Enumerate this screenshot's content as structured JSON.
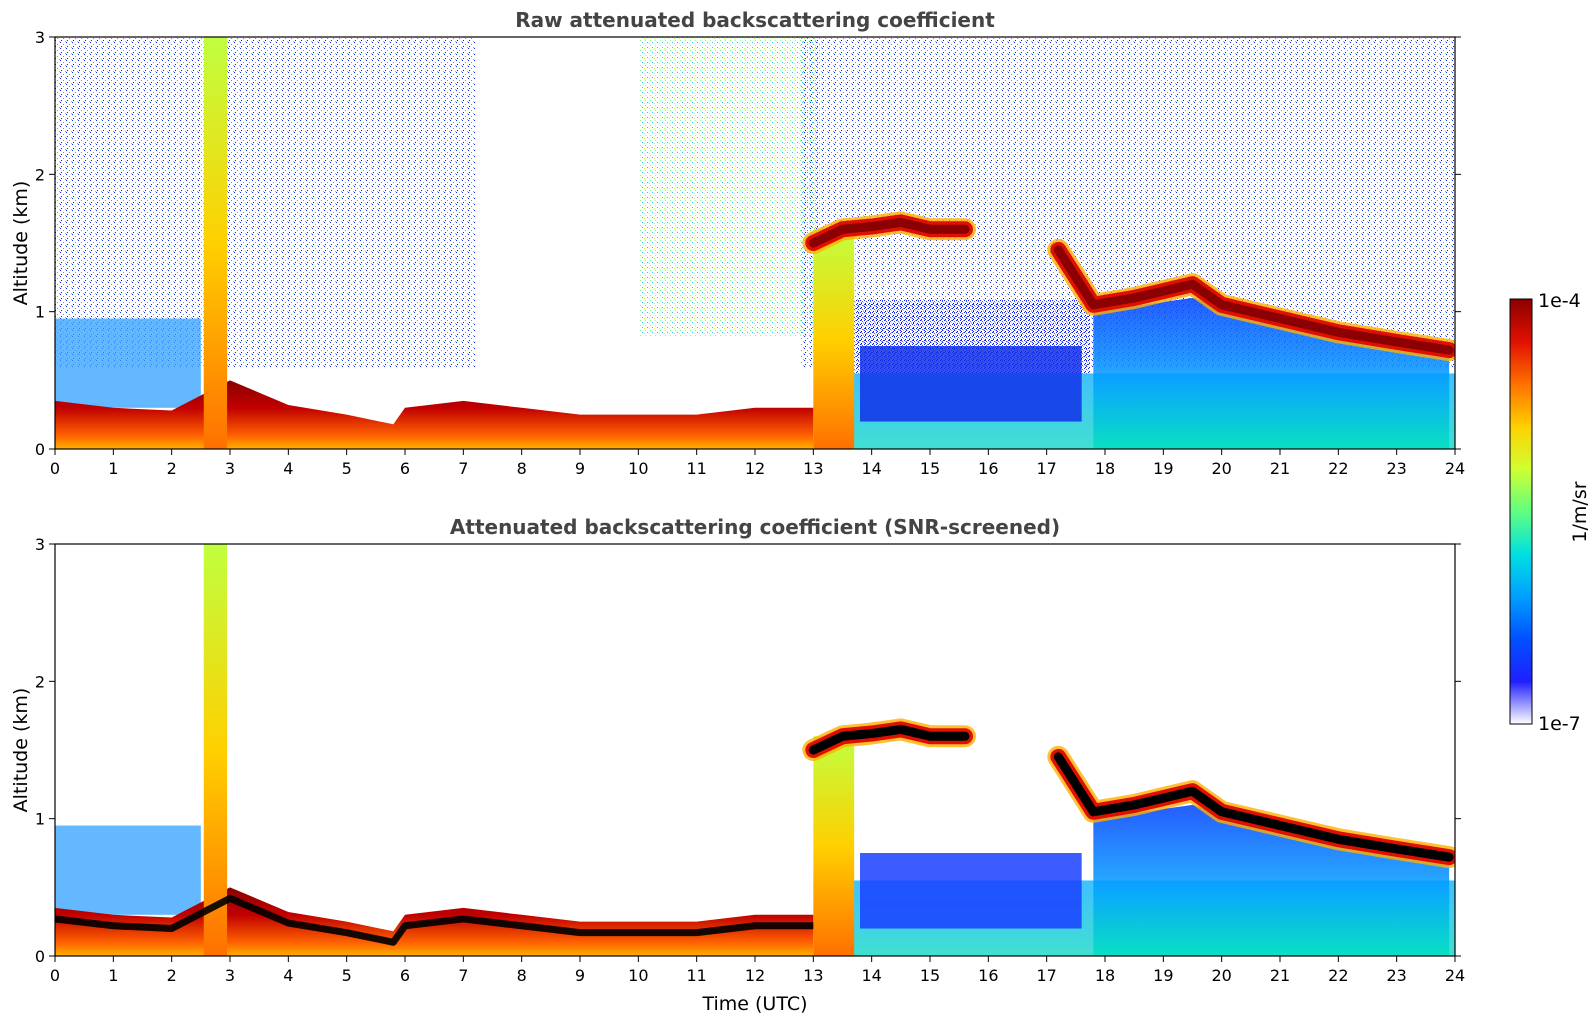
{
  "figure": {
    "xlabel": "Time (UTC)",
    "colorbar": {
      "label": "1/m/sr",
      "max_label": "1e-4",
      "min_label": "1e-7",
      "scale": "log",
      "range": [
        1e-07,
        0.0001
      ]
    }
  },
  "colors": {
    "title_text": "#444444",
    "colormap": [
      "#ffffff",
      "#2020ff",
      "#0050ff",
      "#00a0ff",
      "#00e0e0",
      "#60ff80",
      "#d0ff30",
      "#ffd000",
      "#ff7000",
      "#e01000",
      "#8b0000"
    ],
    "black_layer": "#000000"
  },
  "chart_data": [
    {
      "type": "heatmap",
      "title": "Raw attenuated backscattering coefficient",
      "ylabel": "Altitude (km)",
      "xlim": [
        0,
        24
      ],
      "ylim": [
        0,
        3
      ],
      "xticks": [
        "0",
        "1",
        "2",
        "3",
        "4",
        "5",
        "6",
        "7",
        "8",
        "9",
        "10",
        "11",
        "12",
        "13",
        "14",
        "15",
        "16",
        "17",
        "18",
        "19",
        "20",
        "21",
        "22",
        "23",
        "24"
      ],
      "yticks": [
        "0",
        "1",
        "2",
        "3"
      ],
      "features": {
        "boundary_layer_top_km": [
          [
            0,
            0.35
          ],
          [
            1,
            0.3
          ],
          [
            2,
            0.28
          ],
          [
            3,
            0.5
          ],
          [
            4,
            0.32
          ],
          [
            5,
            0.25
          ],
          [
            5.8,
            0.18
          ],
          [
            6,
            0.3
          ],
          [
            7,
            0.35
          ],
          [
            8,
            0.3
          ],
          [
            9,
            0.25
          ],
          [
            10,
            0.25
          ],
          [
            11,
            0.25
          ],
          [
            12,
            0.3
          ],
          [
            13,
            0.3
          ]
        ],
        "cloud_layer_km": [
          [
            13,
            1.5
          ],
          [
            13.5,
            1.6
          ],
          [
            14,
            1.62
          ],
          [
            14.5,
            1.65
          ],
          [
            15,
            1.6
          ],
          [
            15.6,
            1.6
          ],
          [
            17.2,
            1.45
          ],
          [
            17.8,
            1.05
          ],
          [
            18.5,
            1.1
          ],
          [
            19.5,
            1.2
          ],
          [
            20,
            1.05
          ],
          [
            21,
            0.95
          ],
          [
            22,
            0.85
          ],
          [
            23,
            0.78
          ],
          [
            23.9,
            0.72
          ]
        ],
        "precipitation_columns_h": [
          [
            2.55,
            2.95,
            3.0
          ],
          [
            13.0,
            13.7,
            1.6
          ]
        ]
      }
    },
    {
      "type": "heatmap",
      "title": "Attenuated backscattering coefficient (SNR-screened)",
      "ylabel": "Altitude (km)",
      "xlabel": "Time (UTC)",
      "xlim": [
        0,
        24
      ],
      "ylim": [
        0,
        3
      ],
      "xticks": [
        "0",
        "1",
        "2",
        "3",
        "4",
        "5",
        "6",
        "7",
        "8",
        "9",
        "10",
        "11",
        "12",
        "13",
        "14",
        "15",
        "16",
        "17",
        "18",
        "19",
        "20",
        "21",
        "22",
        "23",
        "24"
      ],
      "yticks": [
        "0",
        "1",
        "2",
        "3"
      ]
    }
  ]
}
